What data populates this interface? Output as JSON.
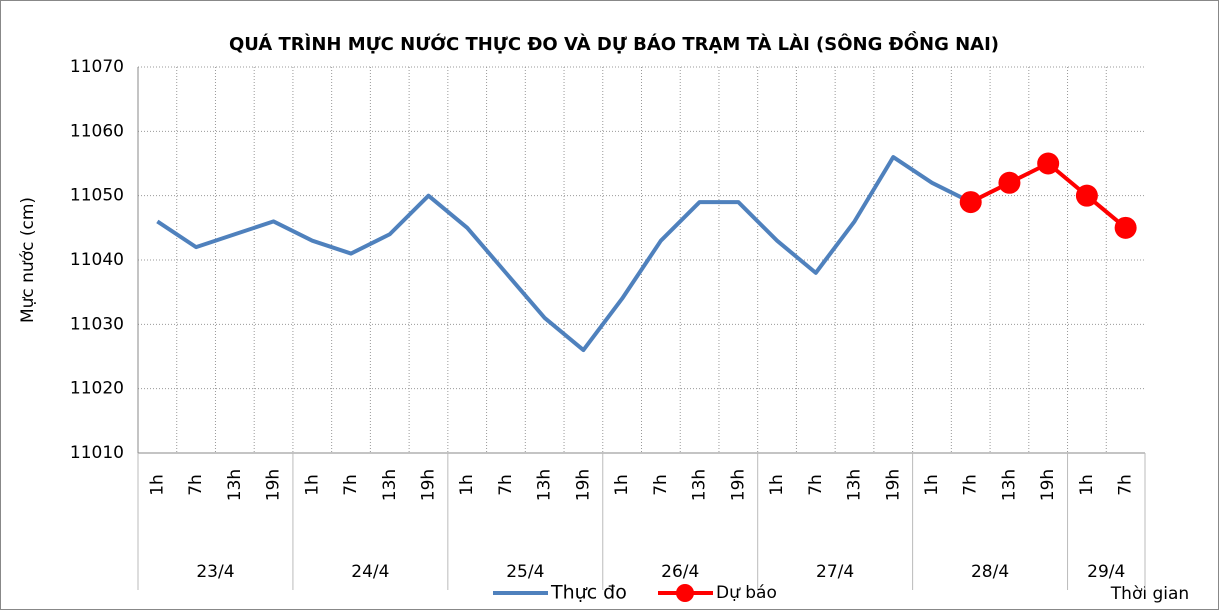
{
  "chart_data": {
    "type": "line",
    "title": "QUÁ TRÌNH MỰC NƯỚC THỰC ĐO VÀ DỰ BÁO TRẠM TÀ LÀI (SÔNG ĐỒNG NAI)",
    "y_label": "Mực nước (cm)",
    "x_label": "Thời gian",
    "categories": [
      "1h",
      "7h",
      "13h",
      "19h",
      "1h",
      "7h",
      "13h",
      "19h",
      "1h",
      "7h",
      "13h",
      "19h",
      "1h",
      "7h",
      "13h",
      "19h",
      "1h",
      "7h",
      "13h",
      "19h",
      "1h",
      "7h",
      "13h",
      "19h",
      "1h",
      "7h"
    ],
    "groups": [
      {
        "label": "23/4",
        "count": 4
      },
      {
        "label": "24/4",
        "count": 4
      },
      {
        "label": "25/4",
        "count": 4
      },
      {
        "label": "26/4",
        "count": 4
      },
      {
        "label": "27/4",
        "count": 4
      },
      {
        "label": "28/4",
        "count": 4
      },
      {
        "label": "29/4",
        "count": 2
      }
    ],
    "series": [
      {
        "name": "Thực đo",
        "color": "#4f81bd",
        "marker": false,
        "values": [
          11046,
          11042,
          11044,
          11046,
          11043,
          11041,
          11044,
          11050,
          11045,
          11038,
          11031,
          11026,
          11034,
          11043,
          11049,
          11049,
          11043,
          11038,
          11046,
          11056,
          11052,
          11049,
          null,
          null,
          null,
          null
        ]
      },
      {
        "name": "Dự báo",
        "color": "#ff0000",
        "marker": true,
        "values": [
          null,
          null,
          null,
          null,
          null,
          null,
          null,
          null,
          null,
          null,
          null,
          null,
          null,
          null,
          null,
          null,
          null,
          null,
          null,
          null,
          null,
          11049,
          11052,
          11055,
          11050,
          11045
        ]
      }
    ],
    "ylim": [
      11010,
      11070
    ],
    "yticks": [
      11010,
      11020,
      11030,
      11040,
      11050,
      11060,
      11070
    ],
    "grid": true
  }
}
